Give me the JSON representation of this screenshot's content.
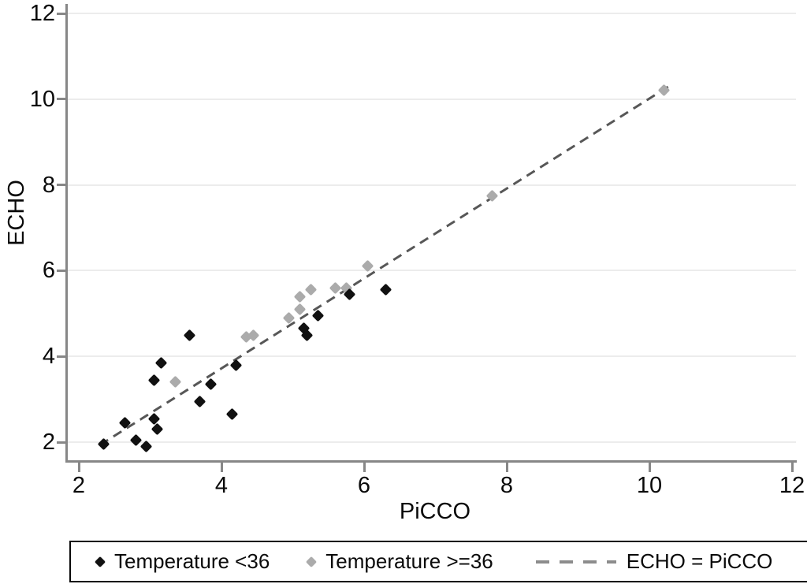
{
  "chart_data": {
    "type": "scatter",
    "title": "",
    "xlabel": "PiCCO",
    "ylabel": "ECHO",
    "xlim": [
      2,
      12
    ],
    "ylim": [
      2,
      12
    ],
    "x_ticks": [
      "2",
      "4",
      "6",
      "8",
      "10",
      "12"
    ],
    "y_ticks": [
      "2",
      "4",
      "6",
      "8",
      "10",
      "12"
    ],
    "grid": "horizontal-only",
    "legend_position": "bottom-box",
    "series": [
      {
        "name": "Temperature <36",
        "marker": "diamond",
        "color": "#111111",
        "points": [
          [
            2.35,
            1.95
          ],
          [
            2.65,
            2.45
          ],
          [
            2.8,
            2.05
          ],
          [
            2.95,
            1.9
          ],
          [
            3.05,
            2.55
          ],
          [
            3.1,
            2.3
          ],
          [
            3.05,
            3.45
          ],
          [
            3.15,
            3.85
          ],
          [
            3.55,
            4.5
          ],
          [
            3.7,
            2.95
          ],
          [
            3.85,
            3.35
          ],
          [
            4.15,
            2.65
          ],
          [
            4.2,
            3.8
          ],
          [
            5.15,
            4.65
          ],
          [
            5.2,
            4.5
          ],
          [
            5.35,
            4.95
          ],
          [
            5.8,
            5.45
          ],
          [
            6.3,
            5.55
          ]
        ]
      },
      {
        "name": "Temperature >=36",
        "marker": "diamond",
        "color": "#ababab",
        "points": [
          [
            3.35,
            3.4
          ],
          [
            4.35,
            4.45
          ],
          [
            4.45,
            4.5
          ],
          [
            4.95,
            4.9
          ],
          [
            5.1,
            5.1
          ],
          [
            5.1,
            5.4
          ],
          [
            5.25,
            5.55
          ],
          [
            5.6,
            5.6
          ],
          [
            5.75,
            5.6
          ],
          [
            6.05,
            6.1
          ],
          [
            7.8,
            7.75
          ],
          [
            10.2,
            10.2
          ]
        ]
      }
    ],
    "reference_line": {
      "label": "ECHO = PiCCO",
      "style": "dashed",
      "color": "#575757",
      "start": [
        2.3,
        1.93
      ],
      "end": [
        10.28,
        10.3
      ]
    }
  },
  "axes": {
    "x": {
      "label": "PiCCO"
    },
    "y": {
      "label": "ECHO"
    }
  },
  "legend": {
    "items": [
      {
        "label": "Temperature <36",
        "marker": "diamond",
        "color": "#111111"
      },
      {
        "label": "Temperature >=36",
        "marker": "diamond",
        "color": "#ababab"
      },
      {
        "label": "ECHO = PiCCO",
        "marker": "dashed-line",
        "color": "#8c8c8c"
      }
    ]
  },
  "colors": {
    "background": "#ffffff",
    "axis": "#878787",
    "gridline": "#ececec",
    "text": "#0a0a0a",
    "series_lt36": "#111111",
    "series_ge36": "#ababab",
    "reference_line": "#575757"
  }
}
